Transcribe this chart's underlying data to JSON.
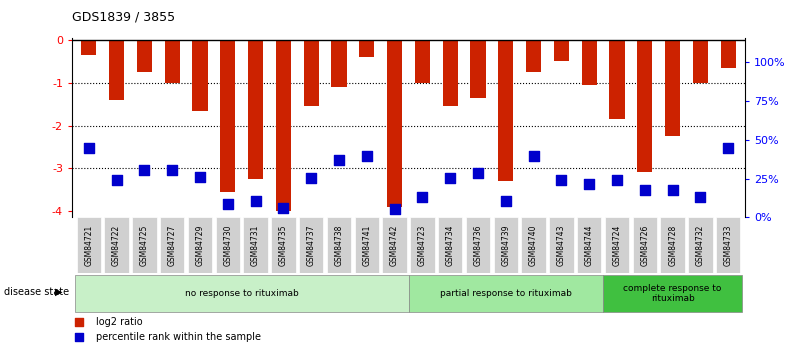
{
  "title": "GDS1839 / 3855",
  "samples": [
    "GSM84721",
    "GSM84722",
    "GSM84725",
    "GSM84727",
    "GSM84729",
    "GSM84730",
    "GSM84731",
    "GSM84735",
    "GSM84737",
    "GSM84738",
    "GSM84741",
    "GSM84742",
    "GSM84723",
    "GSM84734",
    "GSM84736",
    "GSM84739",
    "GSM84740",
    "GSM84743",
    "GSM84744",
    "GSM84724",
    "GSM84726",
    "GSM84728",
    "GSM84732",
    "GSM84733"
  ],
  "log2_values": [
    -0.35,
    -1.4,
    -0.75,
    -1.0,
    -1.65,
    -3.55,
    -3.25,
    -4.0,
    -1.55,
    -1.1,
    -0.4,
    -3.9,
    -1.0,
    -1.55,
    -1.35,
    -3.3,
    -0.75,
    -0.5,
    -1.05,
    -1.85,
    -3.1,
    -2.25,
    -1.0,
    -0.65
  ],
  "percentile_rank": [
    37,
    18,
    24,
    24,
    20,
    4,
    6,
    2,
    19,
    30,
    32,
    1,
    8,
    19,
    22,
    6,
    32,
    18,
    16,
    18,
    12,
    12,
    8,
    37
  ],
  "groups": [
    {
      "label": "no response to rituximab",
      "start": 0,
      "end": 11,
      "color": "#c8f0c8"
    },
    {
      "label": "partial response to rituximab",
      "start": 12,
      "end": 18,
      "color": "#a0e8a0"
    },
    {
      "label": "complete response to\nrituximab",
      "start": 19,
      "end": 23,
      "color": "#40c040"
    }
  ],
  "bar_color": "#cc2200",
  "dot_color": "#0000cc",
  "ylim_left": [
    -4.15,
    0.05
  ],
  "yticks_left": [
    0,
    -1,
    -2,
    -3,
    -4
  ],
  "ytick_labels_left": [
    "0",
    "-1",
    "-2",
    "-3",
    "-4"
  ],
  "yticks_right": [
    0,
    25,
    50,
    75,
    100
  ],
  "ytick_labels_right": [
    "0%",
    "25%",
    "50%",
    "75%",
    "100%"
  ],
  "background_color": "#ffffff",
  "legend_items": [
    {
      "label": "log2 ratio",
      "color": "#cc2200",
      "marker": "s"
    },
    {
      "label": "percentile rank within the sample",
      "color": "#0000cc",
      "marker": "s"
    }
  ]
}
